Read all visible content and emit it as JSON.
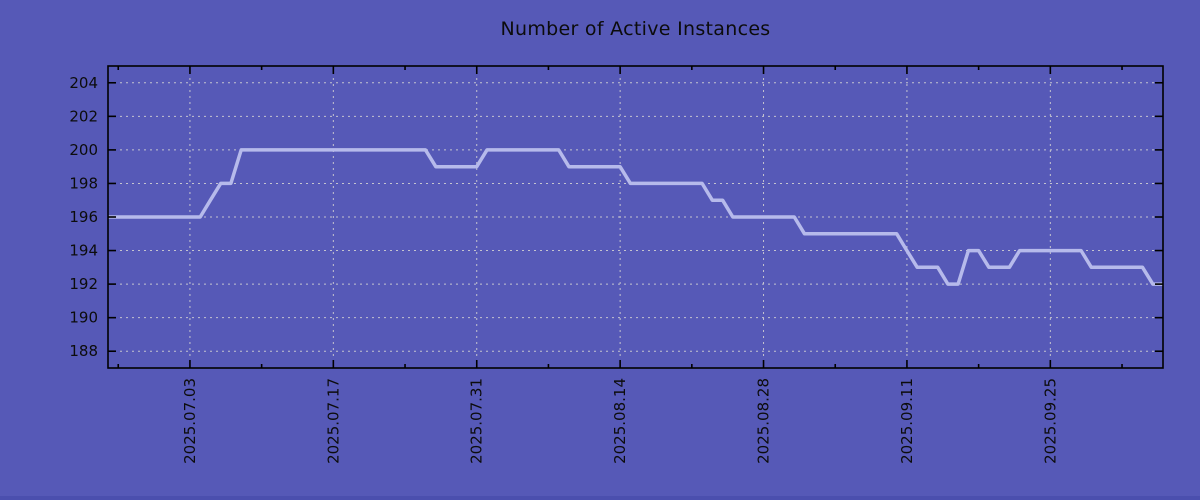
{
  "chart": {
    "title": "Number of Active Instances",
    "colors": {
      "background": "#5659b7",
      "line": "#b6baeb",
      "grid": "#d0d0d2",
      "axis": "#000000",
      "text": "#0c0c0c",
      "bottom_edge": "#4b4fae"
    }
  },
  "chart_data": {
    "type": "line",
    "title": "Number of Active Instances",
    "xlabel": "",
    "ylabel": "",
    "grid": true,
    "legend": false,
    "x_unit": "day",
    "x_start_date": "2025-06-25",
    "x_end_date": "2025-10-06",
    "xlim_days": [
      0,
      103
    ],
    "ylim": [
      187,
      205
    ],
    "y_ticks": [
      188,
      190,
      192,
      194,
      196,
      198,
      200,
      202,
      204
    ],
    "x_major_ticks": [
      {
        "day": 8,
        "label": "2025.07.03"
      },
      {
        "day": 22,
        "label": "2025.07.17"
      },
      {
        "day": 36,
        "label": "2025.07.31"
      },
      {
        "day": 50,
        "label": "2025.08.14"
      },
      {
        "day": 64,
        "label": "2025.08.28"
      },
      {
        "day": 78,
        "label": "2025.09.11"
      },
      {
        "day": 92,
        "label": "2025.09.25"
      }
    ],
    "x_minor_tick_days": [
      1,
      15,
      29,
      43,
      57,
      71,
      85,
      99
    ],
    "series": [
      {
        "name": "active-instances",
        "values": [
          196,
          196,
          196,
          196,
          196,
          196,
          196,
          196,
          196,
          196,
          197,
          198,
          198,
          200,
          200,
          200,
          200,
          200,
          200,
          200,
          200,
          200,
          200,
          200,
          200,
          200,
          200,
          200,
          200,
          200,
          200,
          200,
          199,
          199,
          199,
          199,
          199,
          200,
          200,
          200,
          200,
          200,
          200,
          200,
          200,
          199,
          199,
          199,
          199,
          199,
          199,
          198,
          198,
          198,
          198,
          198,
          198,
          198,
          198,
          197,
          197,
          196,
          196,
          196,
          196,
          196,
          196,
          196,
          195,
          195,
          195,
          195,
          195,
          195,
          195,
          195,
          195,
          195,
          194,
          193,
          193,
          193,
          192,
          192,
          194,
          194,
          193,
          193,
          193,
          194,
          194,
          194,
          194,
          194,
          194,
          194,
          193,
          193,
          193,
          193,
          193,
          193,
          192,
          192
        ]
      }
    ]
  }
}
